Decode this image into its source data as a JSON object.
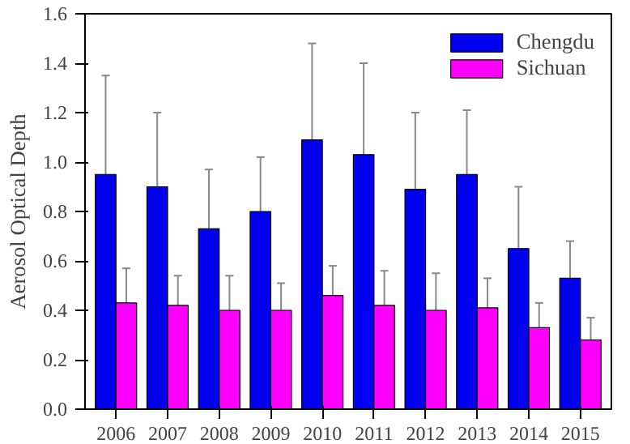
{
  "chart_data": {
    "type": "bar",
    "ylabel": "Aerosol Optical Depth",
    "categories": [
      "2006",
      "2007",
      "2008",
      "2009",
      "2010",
      "2011",
      "2012",
      "2013",
      "2014",
      "2015"
    ],
    "series": [
      {
        "name": "Chengdu",
        "color": "#0000ee",
        "values": [
          0.95,
          0.9,
          0.73,
          0.8,
          1.09,
          1.03,
          0.89,
          0.95,
          0.65,
          0.53
        ],
        "errors": [
          0.4,
          0.3,
          0.24,
          0.22,
          0.39,
          0.37,
          0.31,
          0.26,
          0.25,
          0.15
        ]
      },
      {
        "name": "Sichuan",
        "color": "#ff00ff",
        "values": [
          0.43,
          0.42,
          0.4,
          0.4,
          0.46,
          0.42,
          0.4,
          0.41,
          0.33,
          0.28
        ],
        "errors": [
          0.14,
          0.12,
          0.14,
          0.11,
          0.12,
          0.14,
          0.15,
          0.12,
          0.1,
          0.09
        ]
      }
    ],
    "ylim": [
      0,
      1.6
    ],
    "yticks": [
      {
        "value": 0,
        "label": "0.0"
      },
      0.2,
      0.4,
      0.6,
      0.8,
      {
        "value": 1,
        "label": "1.0"
      },
      1.2,
      1.4,
      1.6
    ],
    "grid": false,
    "legend": "top right"
  }
}
